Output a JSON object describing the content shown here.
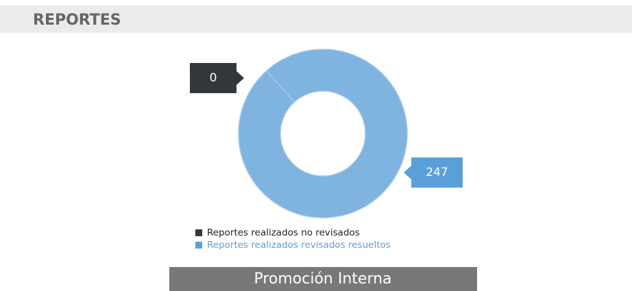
{
  "header": {
    "title": "REPORTES"
  },
  "chart_data": {
    "type": "donut",
    "categories": [
      "Reportes realizados no revisados",
      "Reportes realizados revisados resueltos"
    ],
    "values": [
      0,
      247
    ],
    "colors": [
      "#33363b",
      "#7fb3e0"
    ],
    "legend": "bottom"
  },
  "footer": {
    "title": "Promoción Interna"
  }
}
